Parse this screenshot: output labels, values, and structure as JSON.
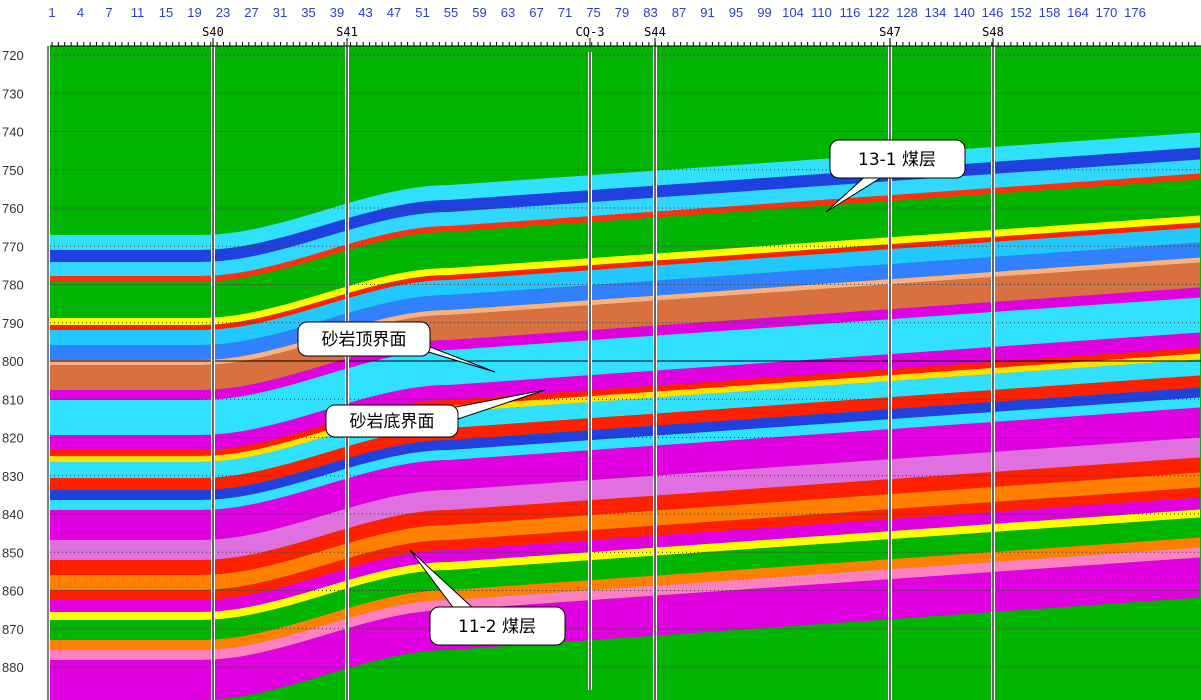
{
  "trace_axis": {
    "labels": [
      "1",
      "4",
      "7",
      "11",
      "15",
      "19",
      "23",
      "27",
      "31",
      "35",
      "39",
      "43",
      "47",
      "51",
      "55",
      "59",
      "63",
      "67",
      "71",
      "75",
      "79",
      "83",
      "87",
      "91",
      "95",
      "99",
      "104",
      "110",
      "116",
      "122",
      "128",
      "134",
      "140",
      "146",
      "152",
      "158",
      "164",
      "170",
      "176"
    ]
  },
  "depth_axis": {
    "ticks": [
      720,
      730,
      740,
      750,
      760,
      770,
      780,
      790,
      800,
      810,
      820,
      830,
      840,
      850,
      860,
      870,
      880
    ]
  },
  "wells": [
    "S40",
    "S41",
    "CQ-3",
    "S44",
    "S47",
    "S48"
  ],
  "callouts": [
    "13-1 煤层",
    "砂岩顶界面",
    "砂岩底界面",
    "11-2 煤层"
  ]
}
